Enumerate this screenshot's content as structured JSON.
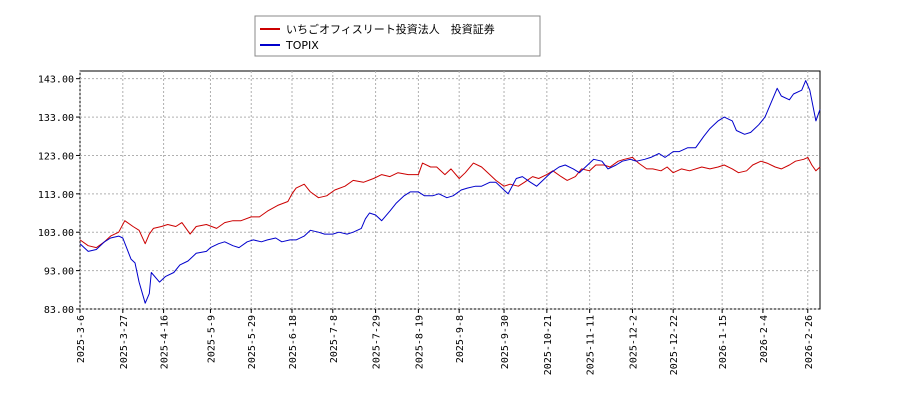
{
  "chart_data": {
    "type": "line",
    "title": "",
    "xlabel": "",
    "ylabel": "",
    "ylim": [
      83,
      145
    ],
    "y_ticks": [
      "143.00",
      "133.00",
      "123.00",
      "113.00",
      "103.00",
      "93.00",
      "83.00"
    ],
    "y_tick_values": [
      143,
      133,
      123,
      113,
      103,
      93,
      83
    ],
    "x_range": [
      "2025-03-06",
      "2026-03-04"
    ],
    "x_ticks": [
      "2025-3-6",
      "2025-3-27",
      "2025-4-16",
      "2025-5-9",
      "2025-5-29",
      "2025-6-18",
      "2025-7-8",
      "2025-7-29",
      "2025-8-19",
      "2025-9-8",
      "2025-9-30",
      "2025-10-21",
      "2025-11-11",
      "2025-12-2",
      "2025-12-22",
      "2026-1-15",
      "2026-2-4",
      "2026-2-26"
    ],
    "x_tick_dates": [
      "2025-03-06",
      "2025-03-27",
      "2025-04-16",
      "2025-05-09",
      "2025-05-29",
      "2025-06-18",
      "2025-07-08",
      "2025-07-29",
      "2025-08-19",
      "2025-09-08",
      "2025-09-30",
      "2025-10-21",
      "2025-11-11",
      "2025-12-02",
      "2025-12-22",
      "2026-01-15",
      "2026-02-04",
      "2026-02-26"
    ],
    "grid": true,
    "legend_position": "top-center",
    "series": [
      {
        "name": "いちごオフィスリート投資法人　投資証券",
        "color": "#cc0000",
        "points": [
          [
            "2025-03-06",
            101.0
          ],
          [
            "2025-03-10",
            99.5
          ],
          [
            "2025-03-14",
            99.0
          ],
          [
            "2025-03-18",
            100.5
          ],
          [
            "2025-03-21",
            102.0
          ],
          [
            "2025-03-25",
            103.0
          ],
          [
            "2025-03-28",
            106.0
          ],
          [
            "2025-04-01",
            104.5
          ],
          [
            "2025-04-04",
            103.5
          ],
          [
            "2025-04-07",
            100.0
          ],
          [
            "2025-04-09",
            102.5
          ],
          [
            "2025-04-11",
            104.0
          ],
          [
            "2025-04-15",
            104.5
          ],
          [
            "2025-04-18",
            105.0
          ],
          [
            "2025-04-22",
            104.5
          ],
          [
            "2025-04-25",
            105.5
          ],
          [
            "2025-04-29",
            102.5
          ],
          [
            "2025-05-02",
            104.5
          ],
          [
            "2025-05-07",
            105.0
          ],
          [
            "2025-05-12",
            104.0
          ],
          [
            "2025-05-16",
            105.5
          ],
          [
            "2025-05-20",
            106.0
          ],
          [
            "2025-05-24",
            106.0
          ],
          [
            "2025-05-29",
            107.0
          ],
          [
            "2025-06-02",
            107.0
          ],
          [
            "2025-06-06",
            108.5
          ],
          [
            "2025-06-11",
            110.0
          ],
          [
            "2025-06-16",
            111.0
          ],
          [
            "2025-06-18",
            113.0
          ],
          [
            "2025-06-20",
            114.5
          ],
          [
            "2025-06-24",
            115.5
          ],
          [
            "2025-06-27",
            113.5
          ],
          [
            "2025-07-01",
            112.0
          ],
          [
            "2025-07-05",
            112.5
          ],
          [
            "2025-07-09",
            114.0
          ],
          [
            "2025-07-14",
            115.0
          ],
          [
            "2025-07-18",
            116.5
          ],
          [
            "2025-07-23",
            116.0
          ],
          [
            "2025-07-28",
            117.0
          ],
          [
            "2025-08-01",
            118.0
          ],
          [
            "2025-08-05",
            117.5
          ],
          [
            "2025-08-09",
            118.5
          ],
          [
            "2025-08-14",
            118.0
          ],
          [
            "2025-08-19",
            118.0
          ],
          [
            "2025-08-21",
            121.0
          ],
          [
            "2025-08-25",
            120.0
          ],
          [
            "2025-08-28",
            120.0
          ],
          [
            "2025-09-01",
            118.0
          ],
          [
            "2025-09-04",
            119.5
          ],
          [
            "2025-09-08",
            117.0
          ],
          [
            "2025-09-11",
            118.5
          ],
          [
            "2025-09-15",
            121.0
          ],
          [
            "2025-09-19",
            120.0
          ],
          [
            "2025-09-23",
            118.0
          ],
          [
            "2025-09-26",
            116.5
          ],
          [
            "2025-09-30",
            115.0
          ],
          [
            "2025-10-03",
            115.5
          ],
          [
            "2025-10-07",
            115.0
          ],
          [
            "2025-10-10",
            116.0
          ],
          [
            "2025-10-14",
            117.5
          ],
          [
            "2025-10-17",
            117.0
          ],
          [
            "2025-10-21",
            118.0
          ],
          [
            "2025-10-24",
            119.0
          ],
          [
            "2025-10-28",
            117.5
          ],
          [
            "2025-10-31",
            116.5
          ],
          [
            "2025-11-04",
            117.5
          ],
          [
            "2025-11-07",
            119.5
          ],
          [
            "2025-11-11",
            119.0
          ],
          [
            "2025-11-14",
            120.5
          ],
          [
            "2025-11-18",
            120.5
          ],
          [
            "2025-11-21",
            120.0
          ],
          [
            "2025-11-25",
            121.5
          ],
          [
            "2025-11-28",
            122.0
          ],
          [
            "2025-12-02",
            122.5
          ],
          [
            "2025-12-05",
            121.0
          ],
          [
            "2025-12-09",
            119.5
          ],
          [
            "2025-12-12",
            119.5
          ],
          [
            "2025-12-16",
            119.0
          ],
          [
            "2025-12-19",
            120.0
          ],
          [
            "2025-12-22",
            118.5
          ],
          [
            "2025-12-26",
            119.5
          ],
          [
            "2025-12-30",
            119.0
          ],
          [
            "2026-01-05",
            120.0
          ],
          [
            "2026-01-09",
            119.5
          ],
          [
            "2026-01-13",
            120.0
          ],
          [
            "2026-01-16",
            120.5
          ],
          [
            "2026-01-20",
            119.5
          ],
          [
            "2026-01-23",
            118.5
          ],
          [
            "2026-01-27",
            119.0
          ],
          [
            "2026-01-30",
            120.5
          ],
          [
            "2026-02-03",
            121.5
          ],
          [
            "2026-02-06",
            121.0
          ],
          [
            "2026-02-10",
            120.0
          ],
          [
            "2026-02-13",
            119.5
          ],
          [
            "2026-02-17",
            120.5
          ],
          [
            "2026-02-20",
            121.5
          ],
          [
            "2026-02-24",
            122.0
          ],
          [
            "2026-02-26",
            122.5
          ],
          [
            "2026-02-28",
            120.5
          ],
          [
            "2026-03-02",
            119.0
          ],
          [
            "2026-03-04",
            120.0
          ]
        ]
      },
      {
        "name": "TOPIX",
        "color": "#0000cc",
        "points": [
          [
            "2025-03-06",
            100.0
          ],
          [
            "2025-03-10",
            98.0
          ],
          [
            "2025-03-14",
            98.5
          ],
          [
            "2025-03-18",
            100.5
          ],
          [
            "2025-03-21",
            101.5
          ],
          [
            "2025-03-25",
            102.0
          ],
          [
            "2025-03-27",
            101.5
          ],
          [
            "2025-03-31",
            96.0
          ],
          [
            "2025-04-02",
            95.0
          ],
          [
            "2025-04-04",
            90.0
          ],
          [
            "2025-04-07",
            84.5
          ],
          [
            "2025-04-09",
            87.0
          ],
          [
            "2025-04-10",
            92.5
          ],
          [
            "2025-04-14",
            90.0
          ],
          [
            "2025-04-17",
            91.5
          ],
          [
            "2025-04-21",
            92.5
          ],
          [
            "2025-04-24",
            94.5
          ],
          [
            "2025-04-28",
            95.5
          ],
          [
            "2025-05-02",
            97.5
          ],
          [
            "2025-05-07",
            98.0
          ],
          [
            "2025-05-09",
            99.0
          ],
          [
            "2025-05-13",
            100.0
          ],
          [
            "2025-05-16",
            100.5
          ],
          [
            "2025-05-20",
            99.5
          ],
          [
            "2025-05-23",
            99.0
          ],
          [
            "2025-05-27",
            100.5
          ],
          [
            "2025-05-30",
            101.0
          ],
          [
            "2025-06-03",
            100.5
          ],
          [
            "2025-06-06",
            101.0
          ],
          [
            "2025-06-10",
            101.5
          ],
          [
            "2025-06-13",
            100.5
          ],
          [
            "2025-06-17",
            101.0
          ],
          [
            "2025-06-20",
            101.0
          ],
          [
            "2025-06-24",
            102.0
          ],
          [
            "2025-06-27",
            103.5
          ],
          [
            "2025-07-01",
            103.0
          ],
          [
            "2025-07-04",
            102.5
          ],
          [
            "2025-07-08",
            102.5
          ],
          [
            "2025-07-11",
            103.0
          ],
          [
            "2025-07-15",
            102.5
          ],
          [
            "2025-07-18",
            103.0
          ],
          [
            "2025-07-22",
            104.0
          ],
          [
            "2025-07-24",
            106.5
          ],
          [
            "2025-07-26",
            108.0
          ],
          [
            "2025-07-29",
            107.5
          ],
          [
            "2025-08-01",
            106.0
          ],
          [
            "2025-08-05",
            108.5
          ],
          [
            "2025-08-08",
            110.5
          ],
          [
            "2025-08-12",
            112.5
          ],
          [
            "2025-08-15",
            113.5
          ],
          [
            "2025-08-19",
            113.5
          ],
          [
            "2025-08-22",
            112.5
          ],
          [
            "2025-08-26",
            112.5
          ],
          [
            "2025-08-29",
            113.0
          ],
          [
            "2025-09-02",
            112.0
          ],
          [
            "2025-09-05",
            112.5
          ],
          [
            "2025-09-09",
            114.0
          ],
          [
            "2025-09-12",
            114.5
          ],
          [
            "2025-09-16",
            115.0
          ],
          [
            "2025-09-19",
            115.0
          ],
          [
            "2025-09-23",
            116.0
          ],
          [
            "2025-09-26",
            116.0
          ],
          [
            "2025-09-30",
            114.0
          ],
          [
            "2025-10-02",
            113.0
          ],
          [
            "2025-10-06",
            117.0
          ],
          [
            "2025-10-09",
            117.5
          ],
          [
            "2025-10-13",
            116.0
          ],
          [
            "2025-10-16",
            115.0
          ],
          [
            "2025-10-20",
            117.0
          ],
          [
            "2025-10-23",
            118.5
          ],
          [
            "2025-10-27",
            120.0
          ],
          [
            "2025-10-30",
            120.5
          ],
          [
            "2025-11-03",
            119.5
          ],
          [
            "2025-11-06",
            118.5
          ],
          [
            "2025-11-10",
            120.5
          ],
          [
            "2025-11-13",
            122.0
          ],
          [
            "2025-11-17",
            121.5
          ],
          [
            "2025-11-20",
            119.5
          ],
          [
            "2025-11-24",
            120.5
          ],
          [
            "2025-11-27",
            121.5
          ],
          [
            "2025-12-01",
            122.0
          ],
          [
            "2025-12-04",
            121.5
          ],
          [
            "2025-12-08",
            122.0
          ],
          [
            "2025-12-11",
            122.5
          ],
          [
            "2025-12-15",
            123.5
          ],
          [
            "2025-12-18",
            122.5
          ],
          [
            "2025-12-22",
            124.0
          ],
          [
            "2025-12-25",
            124.0
          ],
          [
            "2025-12-29",
            125.0
          ],
          [
            "2026-01-02",
            125.0
          ],
          [
            "2026-01-06",
            128.0
          ],
          [
            "2026-01-09",
            130.0
          ],
          [
            "2026-01-13",
            132.0
          ],
          [
            "2026-01-16",
            133.0
          ],
          [
            "2026-01-20",
            132.0
          ],
          [
            "2026-01-22",
            129.5
          ],
          [
            "2026-01-26",
            128.5
          ],
          [
            "2026-01-29",
            129.0
          ],
          [
            "2026-02-02",
            131.0
          ],
          [
            "2026-02-05",
            133.0
          ],
          [
            "2026-02-09",
            138.0
          ],
          [
            "2026-02-11",
            140.5
          ],
          [
            "2026-02-13",
            138.5
          ],
          [
            "2026-02-17",
            137.5
          ],
          [
            "2026-02-19",
            139.0
          ],
          [
            "2026-02-23",
            140.0
          ],
          [
            "2026-02-25",
            142.5
          ],
          [
            "2026-02-27",
            140.0
          ],
          [
            "2026-03-02",
            132.0
          ],
          [
            "2026-03-04",
            135.0
          ]
        ]
      }
    ]
  }
}
